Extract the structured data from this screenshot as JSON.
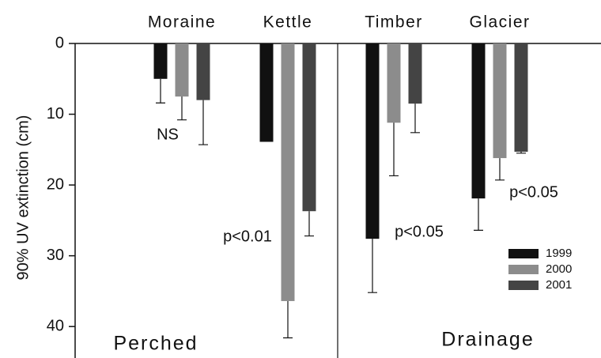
{
  "chart_data": {
    "type": "bar",
    "y_label": "90% UV extinction (cm)",
    "categories": [
      "Moraine",
      "Kettle",
      "Timber",
      "Glacier"
    ],
    "series": [
      {
        "name": "1999",
        "color": "#111111",
        "values": [
          5.0,
          13.9,
          27.6,
          21.9
        ],
        "errors": [
          3.4,
          null,
          7.6,
          4.5
        ]
      },
      {
        "name": "2000",
        "color": "#8c8c8c",
        "values": [
          7.5,
          36.4,
          11.2,
          16.2
        ],
        "errors": [
          3.3,
          5.2,
          7.5,
          3.1
        ]
      },
      {
        "name": "2001",
        "color": "#444444",
        "values": [
          8.0,
          23.7,
          8.5,
          15.3
        ],
        "errors": [
          6.3,
          3.5,
          4.1,
          0.2
        ]
      }
    ],
    "annotations": [
      "NS",
      "p<0.01",
      "p<0.05",
      "p<0.05",
      "Perched",
      "Drainage"
    ],
    "ylim": [
      0,
      44
    ],
    "yticks": [
      0,
      10,
      20,
      30,
      40
    ],
    "inverted_y": true,
    "legend": "right"
  }
}
